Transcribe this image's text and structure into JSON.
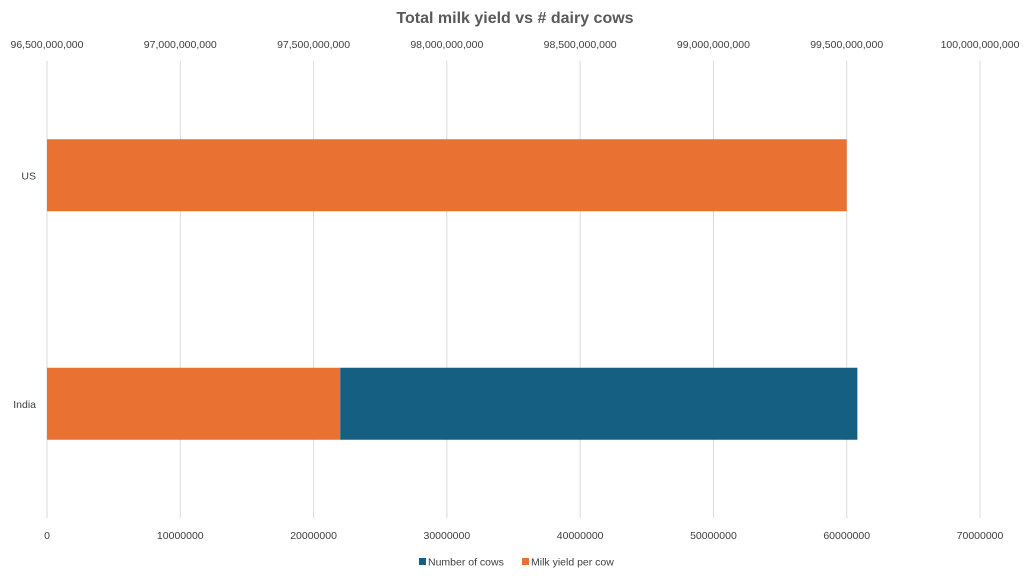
{
  "chart_data": {
    "type": "bar",
    "orientation": "horizontal",
    "stacked": true,
    "title": "Total milk yield vs # dairy cows",
    "categories": [
      "US",
      "India"
    ],
    "series": [
      {
        "name": "Milk yield per cow",
        "color": "#E97132",
        "values": [
          60000000,
          22000000
        ]
      },
      {
        "name": "Number of cows",
        "color": "#156082",
        "values": [
          0,
          38800000
        ]
      }
    ],
    "primary_axis": {
      "position": "bottom",
      "range": [
        0,
        70000000
      ],
      "ticks": [
        0,
        10000000,
        20000000,
        30000000,
        40000000,
        50000000,
        60000000,
        70000000
      ],
      "tick_labels": [
        "0",
        "10000000",
        "20000000",
        "30000000",
        "40000000",
        "50000000",
        "60000000",
        "70000000"
      ]
    },
    "secondary_axis": {
      "position": "top",
      "range": [
        96500000000,
        100000000000
      ],
      "tick_labels": [
        "96,500,000,000",
        "97,000,000,000",
        "97,500,000,000",
        "98,000,000,000",
        "98,500,000,000",
        "99,000,000,000",
        "99,500,000,000",
        "100,000,000,000"
      ]
    },
    "legend": {
      "position": "bottom",
      "entries": [
        {
          "label": "Number of cows",
          "color": "#156082"
        },
        {
          "label": "Milk yield per cow",
          "color": "#E97132"
        }
      ]
    },
    "grid": true
  }
}
